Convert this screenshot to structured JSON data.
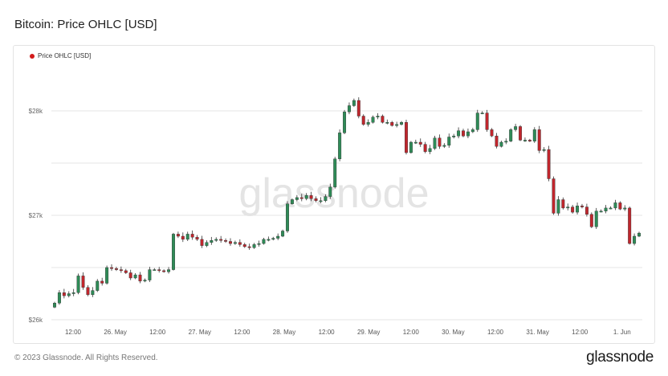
{
  "header": {
    "title": "Bitcoin: Price OHLC [USD]"
  },
  "footer": {
    "copyright": "© 2023 Glassnode. All Rights Reserved.",
    "brand": "glassnode"
  },
  "watermark": "glassnode",
  "colors": {
    "up": "#2e8b57",
    "down": "#c0262d",
    "legend_dot": "#d31b1b",
    "grid": "#e6e6e6"
  },
  "chart_data": {
    "type": "candlestick",
    "title": "Bitcoin: Price OHLC [USD]",
    "legend": [
      "Price OHLC [USD]"
    ],
    "legend_position": "top-left",
    "grid": true,
    "ylim": [
      26000,
      28000
    ],
    "y_ticks": [
      26000,
      27000,
      28000
    ],
    "y_tick_labels": [
      "$26k",
      "$27k",
      "$28k"
    ],
    "x_tick_labels": [
      "12:00",
      "26. May",
      "12:00",
      "27. May",
      "12:00",
      "28. May",
      "12:00",
      "29. May",
      "12:00",
      "30. May",
      "12:00",
      "31. May",
      "12:00",
      "1. Jun"
    ],
    "closes": [
      26160,
      26260,
      26230,
      26250,
      26260,
      26420,
      26310,
      26240,
      26280,
      26370,
      26350,
      26500,
      26490,
      26480,
      26470,
      26450,
      26400,
      26430,
      26370,
      26380,
      26480,
      26480,
      26470,
      26460,
      26480,
      26820,
      26800,
      26770,
      26820,
      26790,
      26770,
      26710,
      26740,
      26760,
      26770,
      26760,
      26750,
      26730,
      26740,
      26720,
      26700,
      26690,
      26720,
      26730,
      26770,
      26770,
      26780,
      26800,
      26850,
      27110,
      27150,
      27170,
      27160,
      27190,
      27160,
      27140,
      27140,
      27180,
      27270,
      27540,
      27790,
      27990,
      28050,
      28100,
      27950,
      27870,
      27890,
      27940,
      27950,
      27890,
      27890,
      27860,
      27870,
      27890,
      27600,
      27700,
      27700,
      27680,
      27610,
      27640,
      27740,
      27660,
      27670,
      27750,
      27760,
      27810,
      27760,
      27800,
      27820,
      27980,
      27980,
      27820,
      27760,
      27660,
      27700,
      27710,
      27820,
      27850,
      27720,
      27720,
      27710,
      27820,
      27620,
      27630,
      27350,
      27020,
      27150,
      27070,
      27080,
      27030,
      27090,
      27080,
      27010,
      26890,
      27040,
      27040,
      27070,
      27070,
      27120,
      27060,
      27070,
      26730,
      26800,
      26830
    ]
  }
}
